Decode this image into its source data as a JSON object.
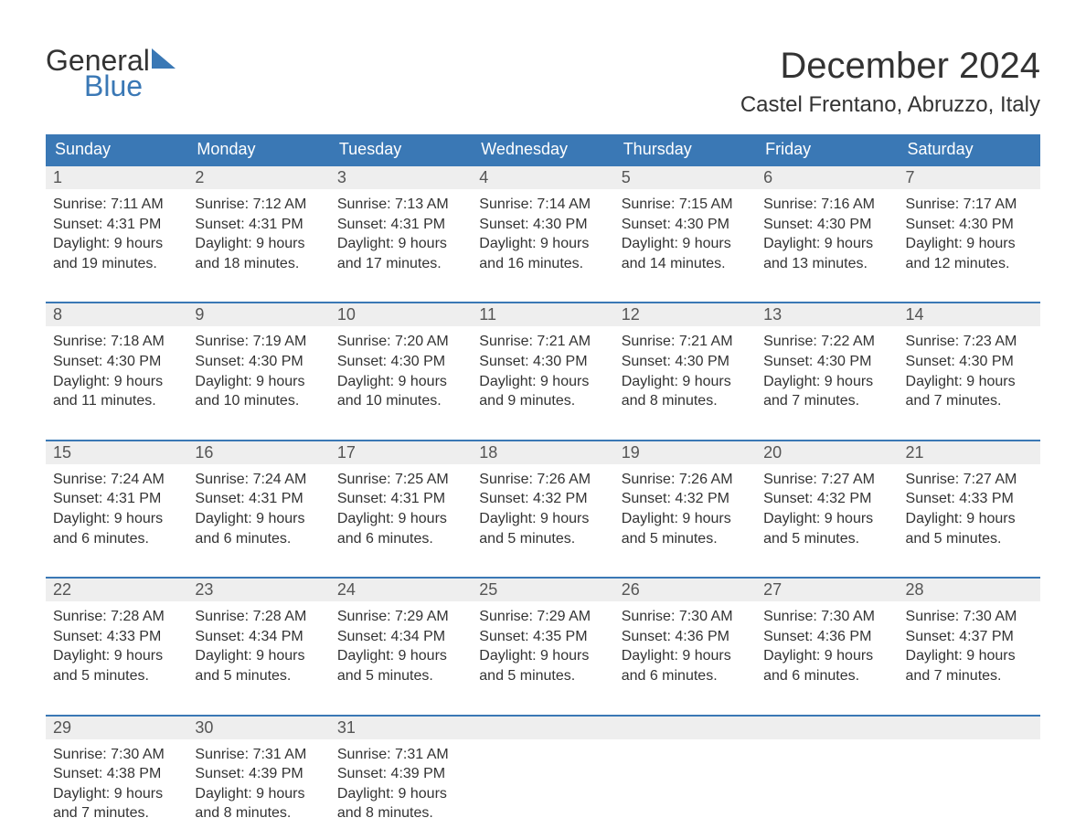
{
  "brand": {
    "word1": "General",
    "word2": "Blue",
    "accent_color": "#3a78b5",
    "text_color": "#333333"
  },
  "title": {
    "month_year": "December 2024",
    "location": "Castel Frentano, Abruzzo, Italy",
    "title_fontsize": 40,
    "location_fontsize": 24
  },
  "calendar": {
    "header_bg": "#3a78b5",
    "header_text_color": "#ffffff",
    "daynum_bg": "#eeeeee",
    "row_border_color": "#3a78b5",
    "body_text_color": "#333333",
    "dow_fontsize": 18,
    "daynum_fontsize": 18,
    "body_fontsize": 16,
    "days_of_week": [
      "Sunday",
      "Monday",
      "Tuesday",
      "Wednesday",
      "Thursday",
      "Friday",
      "Saturday"
    ],
    "weeks": [
      [
        {
          "num": "1",
          "sunrise": "Sunrise: 7:11 AM",
          "sunset": "Sunset: 4:31 PM",
          "day1": "Daylight: 9 hours",
          "day2": "and 19 minutes."
        },
        {
          "num": "2",
          "sunrise": "Sunrise: 7:12 AM",
          "sunset": "Sunset: 4:31 PM",
          "day1": "Daylight: 9 hours",
          "day2": "and 18 minutes."
        },
        {
          "num": "3",
          "sunrise": "Sunrise: 7:13 AM",
          "sunset": "Sunset: 4:31 PM",
          "day1": "Daylight: 9 hours",
          "day2": "and 17 minutes."
        },
        {
          "num": "4",
          "sunrise": "Sunrise: 7:14 AM",
          "sunset": "Sunset: 4:30 PM",
          "day1": "Daylight: 9 hours",
          "day2": "and 16 minutes."
        },
        {
          "num": "5",
          "sunrise": "Sunrise: 7:15 AM",
          "sunset": "Sunset: 4:30 PM",
          "day1": "Daylight: 9 hours",
          "day2": "and 14 minutes."
        },
        {
          "num": "6",
          "sunrise": "Sunrise: 7:16 AM",
          "sunset": "Sunset: 4:30 PM",
          "day1": "Daylight: 9 hours",
          "day2": "and 13 minutes."
        },
        {
          "num": "7",
          "sunrise": "Sunrise: 7:17 AM",
          "sunset": "Sunset: 4:30 PM",
          "day1": "Daylight: 9 hours",
          "day2": "and 12 minutes."
        }
      ],
      [
        {
          "num": "8",
          "sunrise": "Sunrise: 7:18 AM",
          "sunset": "Sunset: 4:30 PM",
          "day1": "Daylight: 9 hours",
          "day2": "and 11 minutes."
        },
        {
          "num": "9",
          "sunrise": "Sunrise: 7:19 AM",
          "sunset": "Sunset: 4:30 PM",
          "day1": "Daylight: 9 hours",
          "day2": "and 10 minutes."
        },
        {
          "num": "10",
          "sunrise": "Sunrise: 7:20 AM",
          "sunset": "Sunset: 4:30 PM",
          "day1": "Daylight: 9 hours",
          "day2": "and 10 minutes."
        },
        {
          "num": "11",
          "sunrise": "Sunrise: 7:21 AM",
          "sunset": "Sunset: 4:30 PM",
          "day1": "Daylight: 9 hours",
          "day2": "and 9 minutes."
        },
        {
          "num": "12",
          "sunrise": "Sunrise: 7:21 AM",
          "sunset": "Sunset: 4:30 PM",
          "day1": "Daylight: 9 hours",
          "day2": "and 8 minutes."
        },
        {
          "num": "13",
          "sunrise": "Sunrise: 7:22 AM",
          "sunset": "Sunset: 4:30 PM",
          "day1": "Daylight: 9 hours",
          "day2": "and 7 minutes."
        },
        {
          "num": "14",
          "sunrise": "Sunrise: 7:23 AM",
          "sunset": "Sunset: 4:30 PM",
          "day1": "Daylight: 9 hours",
          "day2": "and 7 minutes."
        }
      ],
      [
        {
          "num": "15",
          "sunrise": "Sunrise: 7:24 AM",
          "sunset": "Sunset: 4:31 PM",
          "day1": "Daylight: 9 hours",
          "day2": "and 6 minutes."
        },
        {
          "num": "16",
          "sunrise": "Sunrise: 7:24 AM",
          "sunset": "Sunset: 4:31 PM",
          "day1": "Daylight: 9 hours",
          "day2": "and 6 minutes."
        },
        {
          "num": "17",
          "sunrise": "Sunrise: 7:25 AM",
          "sunset": "Sunset: 4:31 PM",
          "day1": "Daylight: 9 hours",
          "day2": "and 6 minutes."
        },
        {
          "num": "18",
          "sunrise": "Sunrise: 7:26 AM",
          "sunset": "Sunset: 4:32 PM",
          "day1": "Daylight: 9 hours",
          "day2": "and 5 minutes."
        },
        {
          "num": "19",
          "sunrise": "Sunrise: 7:26 AM",
          "sunset": "Sunset: 4:32 PM",
          "day1": "Daylight: 9 hours",
          "day2": "and 5 minutes."
        },
        {
          "num": "20",
          "sunrise": "Sunrise: 7:27 AM",
          "sunset": "Sunset: 4:32 PM",
          "day1": "Daylight: 9 hours",
          "day2": "and 5 minutes."
        },
        {
          "num": "21",
          "sunrise": "Sunrise: 7:27 AM",
          "sunset": "Sunset: 4:33 PM",
          "day1": "Daylight: 9 hours",
          "day2": "and 5 minutes."
        }
      ],
      [
        {
          "num": "22",
          "sunrise": "Sunrise: 7:28 AM",
          "sunset": "Sunset: 4:33 PM",
          "day1": "Daylight: 9 hours",
          "day2": "and 5 minutes."
        },
        {
          "num": "23",
          "sunrise": "Sunrise: 7:28 AM",
          "sunset": "Sunset: 4:34 PM",
          "day1": "Daylight: 9 hours",
          "day2": "and 5 minutes."
        },
        {
          "num": "24",
          "sunrise": "Sunrise: 7:29 AM",
          "sunset": "Sunset: 4:34 PM",
          "day1": "Daylight: 9 hours",
          "day2": "and 5 minutes."
        },
        {
          "num": "25",
          "sunrise": "Sunrise: 7:29 AM",
          "sunset": "Sunset: 4:35 PM",
          "day1": "Daylight: 9 hours",
          "day2": "and 5 minutes."
        },
        {
          "num": "26",
          "sunrise": "Sunrise: 7:30 AM",
          "sunset": "Sunset: 4:36 PM",
          "day1": "Daylight: 9 hours",
          "day2": "and 6 minutes."
        },
        {
          "num": "27",
          "sunrise": "Sunrise: 7:30 AM",
          "sunset": "Sunset: 4:36 PM",
          "day1": "Daylight: 9 hours",
          "day2": "and 6 minutes."
        },
        {
          "num": "28",
          "sunrise": "Sunrise: 7:30 AM",
          "sunset": "Sunset: 4:37 PM",
          "day1": "Daylight: 9 hours",
          "day2": "and 7 minutes."
        }
      ],
      [
        {
          "num": "29",
          "sunrise": "Sunrise: 7:30 AM",
          "sunset": "Sunset: 4:38 PM",
          "day1": "Daylight: 9 hours",
          "day2": "and 7 minutes."
        },
        {
          "num": "30",
          "sunrise": "Sunrise: 7:31 AM",
          "sunset": "Sunset: 4:39 PM",
          "day1": "Daylight: 9 hours",
          "day2": "and 8 minutes."
        },
        {
          "num": "31",
          "sunrise": "Sunrise: 7:31 AM",
          "sunset": "Sunset: 4:39 PM",
          "day1": "Daylight: 9 hours",
          "day2": "and 8 minutes."
        },
        {
          "num": "",
          "sunrise": "",
          "sunset": "",
          "day1": "",
          "day2": ""
        },
        {
          "num": "",
          "sunrise": "",
          "sunset": "",
          "day1": "",
          "day2": ""
        },
        {
          "num": "",
          "sunrise": "",
          "sunset": "",
          "day1": "",
          "day2": ""
        },
        {
          "num": "",
          "sunrise": "",
          "sunset": "",
          "day1": "",
          "day2": ""
        }
      ]
    ]
  }
}
